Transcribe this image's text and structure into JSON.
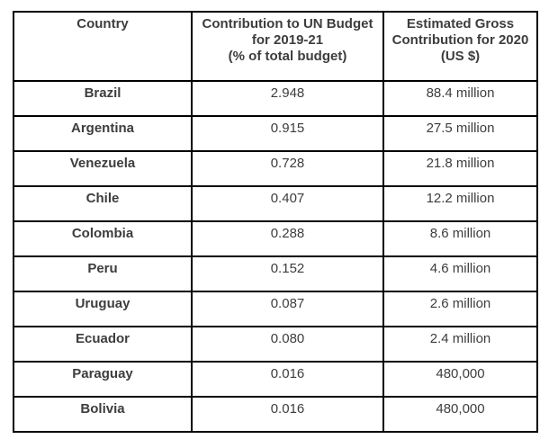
{
  "chart_data": {
    "type": "table",
    "columns": [
      "Country",
      "Contribution to UN Budget for 2019-21 (% of total budget)",
      "Estimated Gross Contribution for 2020 (US $)"
    ],
    "countries": [
      "Brazil",
      "Argentina",
      "Venezuela",
      "Chile",
      "Colombia",
      "Peru",
      "Uruguay",
      "Ecuador",
      "Paraguay",
      "Bolivia"
    ],
    "contribution_pct_of_total_budget": [
      2.948,
      0.915,
      0.728,
      0.407,
      0.288,
      0.152,
      0.087,
      0.08,
      0.016,
      0.016
    ],
    "estimated_gross_contribution_2020_usd": [
      "88.4 million",
      "27.5 million",
      "21.8 million",
      "12.2 million",
      "8.6 million",
      "4.6 million",
      "2.6 million",
      "2.4 million",
      "480,000",
      "480,000"
    ]
  },
  "table": {
    "headers": {
      "country": "Country",
      "contribution": "Contribution to UN Budget\nfor 2019-21\n(% of total budget)",
      "estimated": "Estimated Gross\nContribution for 2020\n(US $)"
    },
    "rows": [
      {
        "country": "Brazil",
        "contribution_pct": "2.948",
        "estimated_gross": "88.4 million"
      },
      {
        "country": "Argentina",
        "contribution_pct": "0.915",
        "estimated_gross": "27.5 million"
      },
      {
        "country": "Venezuela",
        "contribution_pct": "0.728",
        "estimated_gross": "21.8 million"
      },
      {
        "country": "Chile",
        "contribution_pct": "0.407",
        "estimated_gross": "12.2 million"
      },
      {
        "country": "Colombia",
        "contribution_pct": "0.288",
        "estimated_gross": "8.6 million"
      },
      {
        "country": "Peru",
        "contribution_pct": "0.152",
        "estimated_gross": "4.6 million"
      },
      {
        "country": "Uruguay",
        "contribution_pct": "0.087",
        "estimated_gross": "2.6 million"
      },
      {
        "country": "Ecuador",
        "contribution_pct": "0.080",
        "estimated_gross": "2.4 million"
      },
      {
        "country": "Paraguay",
        "contribution_pct": "0.016",
        "estimated_gross": "480,000"
      },
      {
        "country": "Bolivia",
        "contribution_pct": "0.016",
        "estimated_gross": "480,000"
      }
    ]
  },
  "colors": {
    "border": "#000000",
    "text": "#3d3d3d",
    "background": "#ffffff"
  }
}
